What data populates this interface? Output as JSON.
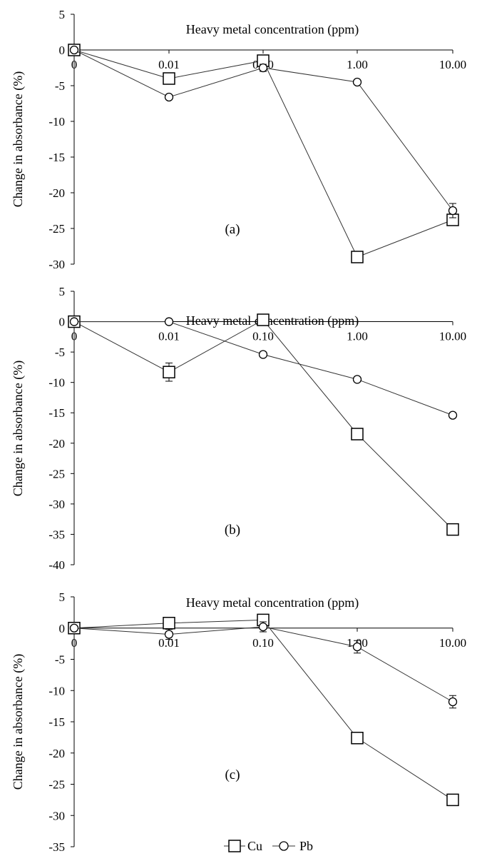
{
  "legend": [
    {
      "name": "Cu",
      "marker": "square"
    },
    {
      "name": "Pb",
      "marker": "circle"
    }
  ],
  "chart_data": [
    {
      "type": "line",
      "panel_label": "(a)",
      "xlabel": "Heavy metal concentration (ppm)",
      "ylabel": "Change in absorbance (%)",
      "categories": [
        "0",
        "0.01",
        "0.10",
        "1.00",
        "10.00"
      ],
      "ylim": [
        -30,
        5
      ],
      "yticks": [
        5,
        0,
        -5,
        -10,
        -15,
        -20,
        -25,
        -30
      ],
      "grid": false,
      "series": [
        {
          "name": "Cu",
          "marker": "square",
          "values": [
            0,
            -4,
            -1.5,
            -29,
            -23.8
          ],
          "errors": [
            0,
            0.8,
            0.5,
            0.5,
            0.8
          ]
        },
        {
          "name": "Pb",
          "marker": "circle",
          "values": [
            0,
            -6.6,
            -2.5,
            -4.5,
            -22.5
          ],
          "errors": [
            0,
            0.3,
            0.5,
            0.3,
            1.0
          ]
        }
      ]
    },
    {
      "type": "line",
      "panel_label": "(b)",
      "xlabel": "Heavy metal concentration (ppm)",
      "ylabel": "Change in absorbance (%)",
      "categories": [
        "0",
        "0.01",
        "0.10",
        "1.00",
        "10.00"
      ],
      "ylim": [
        -40,
        5
      ],
      "yticks": [
        5,
        0,
        -5,
        -10,
        -15,
        -20,
        -25,
        -30,
        -35,
        -40
      ],
      "grid": false,
      "series": [
        {
          "name": "Cu",
          "marker": "square",
          "values": [
            0,
            -8.3,
            0.3,
            -18.5,
            -34.2
          ],
          "errors": [
            0,
            1.5,
            0.5,
            0.8,
            0.8
          ]
        },
        {
          "name": "Pb",
          "marker": "circle",
          "values": [
            0,
            0,
            -5.4,
            -9.5,
            -15.4
          ],
          "errors": [
            0,
            0.2,
            0.4,
            0.3,
            0.4
          ]
        }
      ]
    },
    {
      "type": "line",
      "panel_label": "(c)",
      "xlabel": "Heavy metal concentration (ppm)",
      "ylabel": "Change in absorbance (%)",
      "categories": [
        "0",
        "0.01",
        "0.10",
        "1.00",
        "10.00"
      ],
      "ylim": [
        -35,
        5
      ],
      "yticks": [
        5,
        0,
        -5,
        -10,
        -15,
        -20,
        -25,
        -30,
        -35
      ],
      "grid": false,
      "series": [
        {
          "name": "Cu",
          "marker": "square",
          "values": [
            0,
            0.8,
            1.3,
            -17.6,
            -27.5
          ],
          "errors": [
            0,
            0.8,
            0.8,
            0.5,
            0.5
          ]
        },
        {
          "name": "Pb",
          "marker": "circle",
          "values": [
            0,
            -1,
            0.2,
            -3,
            -11.8
          ],
          "errors": [
            0,
            0.8,
            0.8,
            1.0,
            1.0
          ]
        }
      ]
    }
  ]
}
